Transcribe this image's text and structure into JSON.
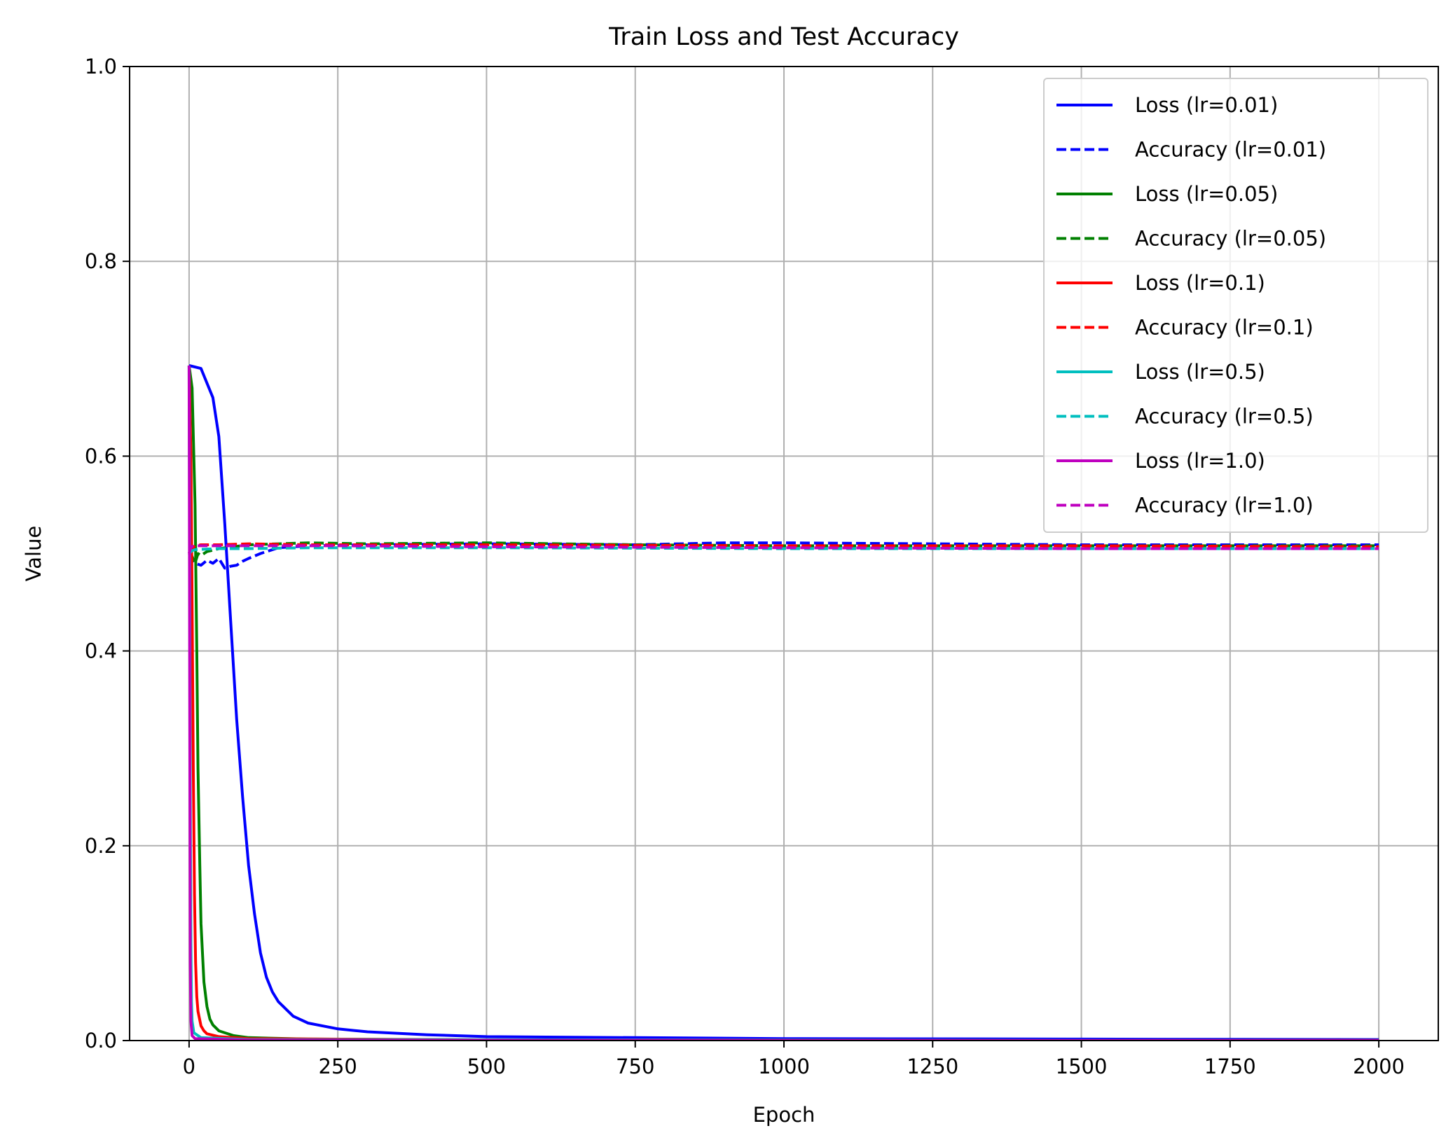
{
  "chart_data": {
    "type": "line",
    "title": "Train Loss and Test Accuracy",
    "xlabel": "Epoch",
    "ylabel": "Value",
    "xlim": [
      -100,
      2100
    ],
    "ylim": [
      0.0,
      1.0
    ],
    "xticks": [
      0,
      250,
      500,
      750,
      1000,
      1250,
      1500,
      1750,
      2000
    ],
    "xtick_labels": [
      "0",
      "250",
      "500",
      "750",
      "1000",
      "1250",
      "1500",
      "1750",
      "2000"
    ],
    "yticks": [
      0.0,
      0.2,
      0.4,
      0.6,
      0.8,
      1.0
    ],
    "ytick_labels": [
      "0.0",
      "0.2",
      "0.4",
      "0.6",
      "0.8",
      "1.0"
    ],
    "grid": true,
    "legend_position": "top-right",
    "series": [
      {
        "name": "Loss (lr=0.01)",
        "color": "#0000ff",
        "style": "solid",
        "x": [
          0,
          20,
          40,
          50,
          60,
          70,
          80,
          90,
          100,
          110,
          120,
          130,
          140,
          150,
          175,
          200,
          250,
          300,
          400,
          500,
          750,
          1000,
          1500,
          2000
        ],
        "y": [
          0.693,
          0.69,
          0.66,
          0.62,
          0.53,
          0.43,
          0.33,
          0.25,
          0.18,
          0.13,
          0.09,
          0.065,
          0.05,
          0.04,
          0.025,
          0.018,
          0.012,
          0.009,
          0.006,
          0.004,
          0.003,
          0.002,
          0.0015,
          0.001
        ]
      },
      {
        "name": "Accuracy (lr=0.01)",
        "color": "#0000ff",
        "style": "dashed",
        "x": [
          0,
          10,
          20,
          30,
          40,
          50,
          60,
          70,
          80,
          90,
          100,
          120,
          150,
          200,
          300,
          500,
          750,
          900,
          1000,
          1250,
          1500,
          2000
        ],
        "y": [
          0.5,
          0.49,
          0.488,
          0.493,
          0.49,
          0.495,
          0.485,
          0.487,
          0.488,
          0.492,
          0.495,
          0.5,
          0.506,
          0.508,
          0.509,
          0.51,
          0.509,
          0.511,
          0.511,
          0.51,
          0.509,
          0.509
        ]
      },
      {
        "name": "Loss (lr=0.05)",
        "color": "#008000",
        "style": "solid",
        "x": [
          0,
          5,
          10,
          13,
          15,
          18,
          20,
          25,
          30,
          35,
          40,
          50,
          75,
          100,
          200,
          500,
          1000,
          2000
        ],
        "y": [
          0.693,
          0.67,
          0.55,
          0.4,
          0.28,
          0.18,
          0.12,
          0.06,
          0.035,
          0.022,
          0.016,
          0.01,
          0.005,
          0.003,
          0.0015,
          0.0008,
          0.0005,
          0.0003
        ]
      },
      {
        "name": "Accuracy (lr=0.05)",
        "color": "#008000",
        "style": "dashed",
        "x": [
          0,
          5,
          10,
          15,
          20,
          30,
          50,
          100,
          200,
          300,
          500,
          750,
          1000,
          1500,
          2000
        ],
        "y": [
          0.5,
          0.497,
          0.49,
          0.5,
          0.498,
          0.502,
          0.505,
          0.509,
          0.511,
          0.51,
          0.511,
          0.509,
          0.508,
          0.508,
          0.508
        ]
      },
      {
        "name": "Loss (lr=0.1)",
        "color": "#ff0000",
        "style": "solid",
        "x": [
          0,
          3,
          5,
          7,
          9,
          11,
          13,
          15,
          20,
          25,
          30,
          50,
          100,
          500,
          2000
        ],
        "y": [
          0.693,
          0.6,
          0.45,
          0.28,
          0.15,
          0.08,
          0.045,
          0.03,
          0.015,
          0.01,
          0.007,
          0.004,
          0.002,
          0.0005,
          0.0002
        ]
      },
      {
        "name": "Accuracy (lr=0.1)",
        "color": "#ff0000",
        "style": "dashed",
        "x": [
          0,
          5,
          10,
          20,
          50,
          100,
          200,
          500,
          1000,
          1500,
          2000
        ],
        "y": [
          0.5,
          0.505,
          0.508,
          0.509,
          0.509,
          0.51,
          0.509,
          0.509,
          0.508,
          0.508,
          0.507
        ]
      },
      {
        "name": "Loss (lr=0.5)",
        "color": "#00bfbf",
        "style": "solid",
        "x": [
          0,
          1,
          2,
          3,
          4,
          5,
          8,
          20,
          100,
          2000
        ],
        "y": [
          0.693,
          0.5,
          0.25,
          0.1,
          0.04,
          0.02,
          0.008,
          0.003,
          0.001,
          0.0001
        ]
      },
      {
        "name": "Accuracy (lr=0.5)",
        "color": "#00bfbf",
        "style": "dashed",
        "x": [
          0,
          5,
          10,
          50,
          100,
          200,
          500,
          1000,
          1500,
          2000
        ],
        "y": [
          0.5,
          0.503,
          0.504,
          0.505,
          0.505,
          0.506,
          0.506,
          0.505,
          0.505,
          0.505
        ]
      },
      {
        "name": "Loss (lr=1.0)",
        "color": "#bf00bf",
        "style": "solid",
        "x": [
          0,
          1,
          2,
          3,
          5,
          10,
          100,
          2000
        ],
        "y": [
          0.693,
          0.35,
          0.08,
          0.02,
          0.005,
          0.002,
          0.0005,
          0.0001
        ]
      },
      {
        "name": "Accuracy (lr=1.0)",
        "color": "#bf00bf",
        "style": "dashed",
        "x": [
          0,
          3,
          10,
          50,
          100,
          250,
          500,
          1000,
          1500,
          2000
        ],
        "y": [
          0.5,
          0.507,
          0.508,
          0.508,
          0.508,
          0.508,
          0.507,
          0.506,
          0.505,
          0.505
        ]
      }
    ]
  }
}
